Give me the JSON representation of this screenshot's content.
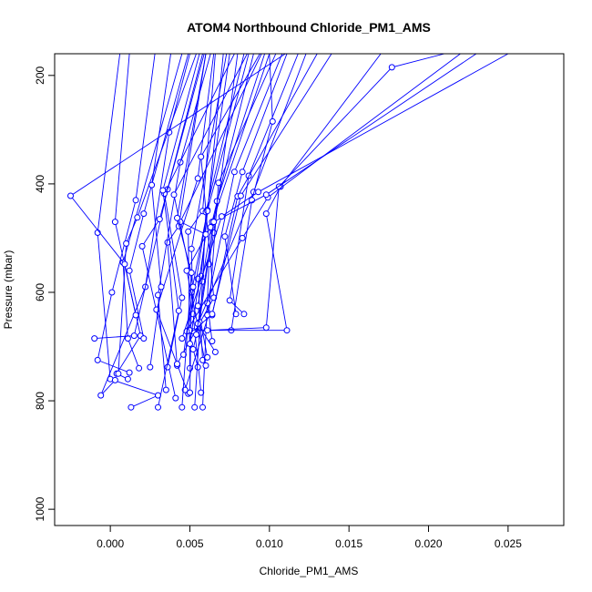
{
  "chart_data": {
    "type": "line",
    "title": "ATOM4 Northbound Chloride_PM1_AMS",
    "xlabel": "Chloride_PM1_AMS",
    "ylabel": "Pressure (mbar)",
    "xlim": [
      -0.0035,
      0.0285
    ],
    "ylim": [
      1030,
      160
    ],
    "y_reversed": true,
    "grid": false,
    "line_color": "#0000ff",
    "marker": "open-circle",
    "x_ticks": [
      0.0,
      0.005,
      0.01,
      0.015,
      0.02,
      0.025
    ],
    "x_tick_labels": [
      "0.000",
      "0.005",
      "0.010",
      "0.015",
      "0.020",
      "0.025"
    ],
    "y_ticks": [
      200,
      400,
      600,
      800,
      1000
    ],
    "y_tick_labels": [
      "200",
      "400",
      "600",
      "800",
      "1000"
    ],
    "series": [
      {
        "x": [
          0.0006,
          -0.0008,
          0.0,
          0.003,
          0.0013
        ],
        "y": [
          160,
          490,
          760,
          790,
          812
        ]
      },
      {
        "x": [
          0.0012,
          0.0003,
          0.0019,
          0.0004,
          0.0011
        ],
        "y": [
          160,
          470,
          680,
          750,
          760
        ]
      },
      {
        "x": [
          0.0028,
          0.0016,
          0.0001,
          -0.0008,
          0.0012
        ],
        "y": [
          160,
          430,
          600,
          725,
          748
        ]
      },
      {
        "x": [
          0.0045,
          0.0008,
          0.0011,
          0.0018
        ],
        "y": [
          160,
          545,
          685,
          740
        ]
      },
      {
        "x": [
          0.0049,
          0.0021,
          0.0012,
          0.0021
        ],
        "y": [
          160,
          455,
          560,
          685
        ]
      },
      {
        "x": [
          0.005,
          0.0037,
          0.0022,
          -0.0006,
          0.0003
        ],
        "y": [
          160,
          305,
          590,
          790,
          762
        ]
      },
      {
        "x": [
          0.0054,
          0.0017,
          0.001,
          0.0005
        ],
        "y": [
          160,
          462,
          510,
          750
        ]
      },
      {
        "x": [
          0.0058,
          0.0036,
          0.0015,
          -0.001
        ],
        "y": [
          160,
          410,
          680,
          685
        ]
      },
      {
        "x": [
          0.0059,
          0.0031,
          0.002,
          0.0041
        ],
        "y": [
          160,
          465,
          515,
          795
        ]
      },
      {
        "x": [
          0.006,
          0.0043,
          0.0036,
          0.0042
        ],
        "y": [
          160,
          478,
          508,
          735
        ]
      },
      {
        "x": [
          0.0063,
          0.0044,
          0.003,
          0.0035
        ],
        "y": [
          160,
          360,
          605,
          780
        ]
      },
      {
        "x": [
          0.0065,
          0.0055,
          0.0029,
          0.0049
        ],
        "y": [
          160,
          390,
          632,
          787
        ]
      },
      {
        "x": [
          0.0066,
          0.0058,
          0.0049,
          0.005
        ],
        "y": [
          160,
          450,
          488,
          740
        ]
      },
      {
        "x": [
          0.0071,
          0.0057,
          0.0055,
          0.0058
        ],
        "y": [
          160,
          570,
          575,
          725
        ]
      },
      {
        "x": [
          0.0073,
          0.0051,
          0.0052,
          0.0057
        ],
        "y": [
          160,
          520,
          640,
          785
        ]
      },
      {
        "x": [
          0.0075,
          0.0061,
          0.0049,
          0.0055
        ],
        "y": [
          160,
          448,
          670,
          738
        ]
      },
      {
        "x": [
          0.008,
          0.0065,
          0.0062,
          0.0058
        ],
        "y": [
          160,
          490,
          548,
          812
        ]
      },
      {
        "x": [
          0.0084,
          0.006,
          0.0058,
          0.0053
        ],
        "y": [
          160,
          452,
          580,
          812
        ]
      },
      {
        "x": [
          0.0087,
          0.0061,
          0.0051,
          0.005
        ],
        "y": [
          160,
          450,
          600,
          785
        ]
      },
      {
        "x": [
          0.009,
          0.0064,
          0.0055,
          0.0061
        ],
        "y": [
          160,
          470,
          625,
          720
        ]
      },
      {
        "x": [
          0.0094,
          0.0057,
          0.0065,
          0.0042
        ],
        "y": [
          160,
          350,
          610,
          732
        ]
      },
      {
        "x": [
          0.0097,
          0.0067,
          0.0056,
          0.0052
        ],
        "y": [
          160,
          432,
          655,
          705
        ]
      },
      {
        "x": [
          0.01,
          0.0063,
          0.0048,
          0.006
        ],
        "y": [
          160,
          480,
          560,
          735
        ]
      },
      {
        "x": [
          0.0104,
          0.0068,
          0.0062,
          0.0047
        ],
        "y": [
          160,
          398,
          640,
          780
        ]
      },
      {
        "x": [
          0.0108,
          0.0078,
          0.0061,
          0.0064
        ],
        "y": [
          160,
          378,
          620,
          690
        ]
      },
      {
        "x": [
          0.0111,
          0.0083,
          0.0072,
          0.0079
        ],
        "y": [
          160,
          378,
          497,
          640
        ]
      },
      {
        "x": [
          0.0118,
          0.0087,
          0.0075,
          0.0084
        ],
        "y": [
          160,
          385,
          615,
          640
        ]
      },
      {
        "x": [
          0.0123,
          0.009,
          0.0055,
          0.0066
        ],
        "y": [
          160,
          415,
          658,
          710
        ]
      },
      {
        "x": [
          0.013,
          0.008,
          0.0064,
          0.0061
        ],
        "y": [
          160,
          423,
          642,
          642
        ]
      },
      {
        "x": [
          0.0139,
          0.0082,
          0.0064,
          0.0052
        ],
        "y": [
          160,
          422,
          640,
          672
        ]
      },
      {
        "x": [
          0.01,
          0.0102,
          0.0089,
          0.0076
        ],
        "y": [
          160,
          285,
          430,
          670
        ]
      },
      {
        "x": [
          0.017,
          0.0107,
          0.0098,
          0.0111,
          0.005
        ],
        "y": [
          160,
          405,
          455,
          670,
          670
        ]
      },
      {
        "x": [
          0.021,
          0.0177,
          0.0106,
          0.0098,
          0.0061
        ],
        "y": [
          160,
          185,
          405,
          665,
          670
        ]
      },
      {
        "x": [
          0.022,
          0.0099,
          0.0083,
          0.0048
        ],
        "y": [
          160,
          425,
          500,
          672
        ]
      },
      {
        "x": [
          0.023,
          0.0098,
          0.0065,
          0.0054
        ],
        "y": [
          160,
          420,
          470,
          678
        ]
      },
      {
        "x": [
          0.025,
          0.0093,
          0.007,
          0.0045
        ],
        "y": [
          160,
          415,
          460,
          685
        ]
      },
      {
        "x": [
          0.011,
          -0.0025,
          0.0009,
          0.0016
        ],
        "y": [
          160,
          422,
          548,
          642
        ]
      },
      {
        "x": [
          0.0095,
          0.0044,
          0.006,
          0.005
        ],
        "y": [
          160,
          470,
          493,
          695
        ]
      },
      {
        "x": [
          0.0086,
          0.004,
          0.0052,
          0.0046
        ],
        "y": [
          160,
          420,
          590,
          715
        ]
      },
      {
        "x": [
          0.0078,
          0.0034,
          0.0045,
          0.0036
        ],
        "y": [
          160,
          418,
          610,
          738
        ]
      },
      {
        "x": [
          0.0038,
          0.0026,
          0.0032,
          0.0025
        ],
        "y": [
          160,
          402,
          590,
          738
        ]
      },
      {
        "x": [
          0.006,
          0.0042,
          0.0051,
          0.0045
        ],
        "y": [
          160,
          463,
          564,
          812
        ]
      },
      {
        "x": [
          0.0056,
          0.0033,
          0.0043,
          0.003
        ],
        "y": [
          160,
          412,
          634,
          812
        ]
      }
    ]
  }
}
